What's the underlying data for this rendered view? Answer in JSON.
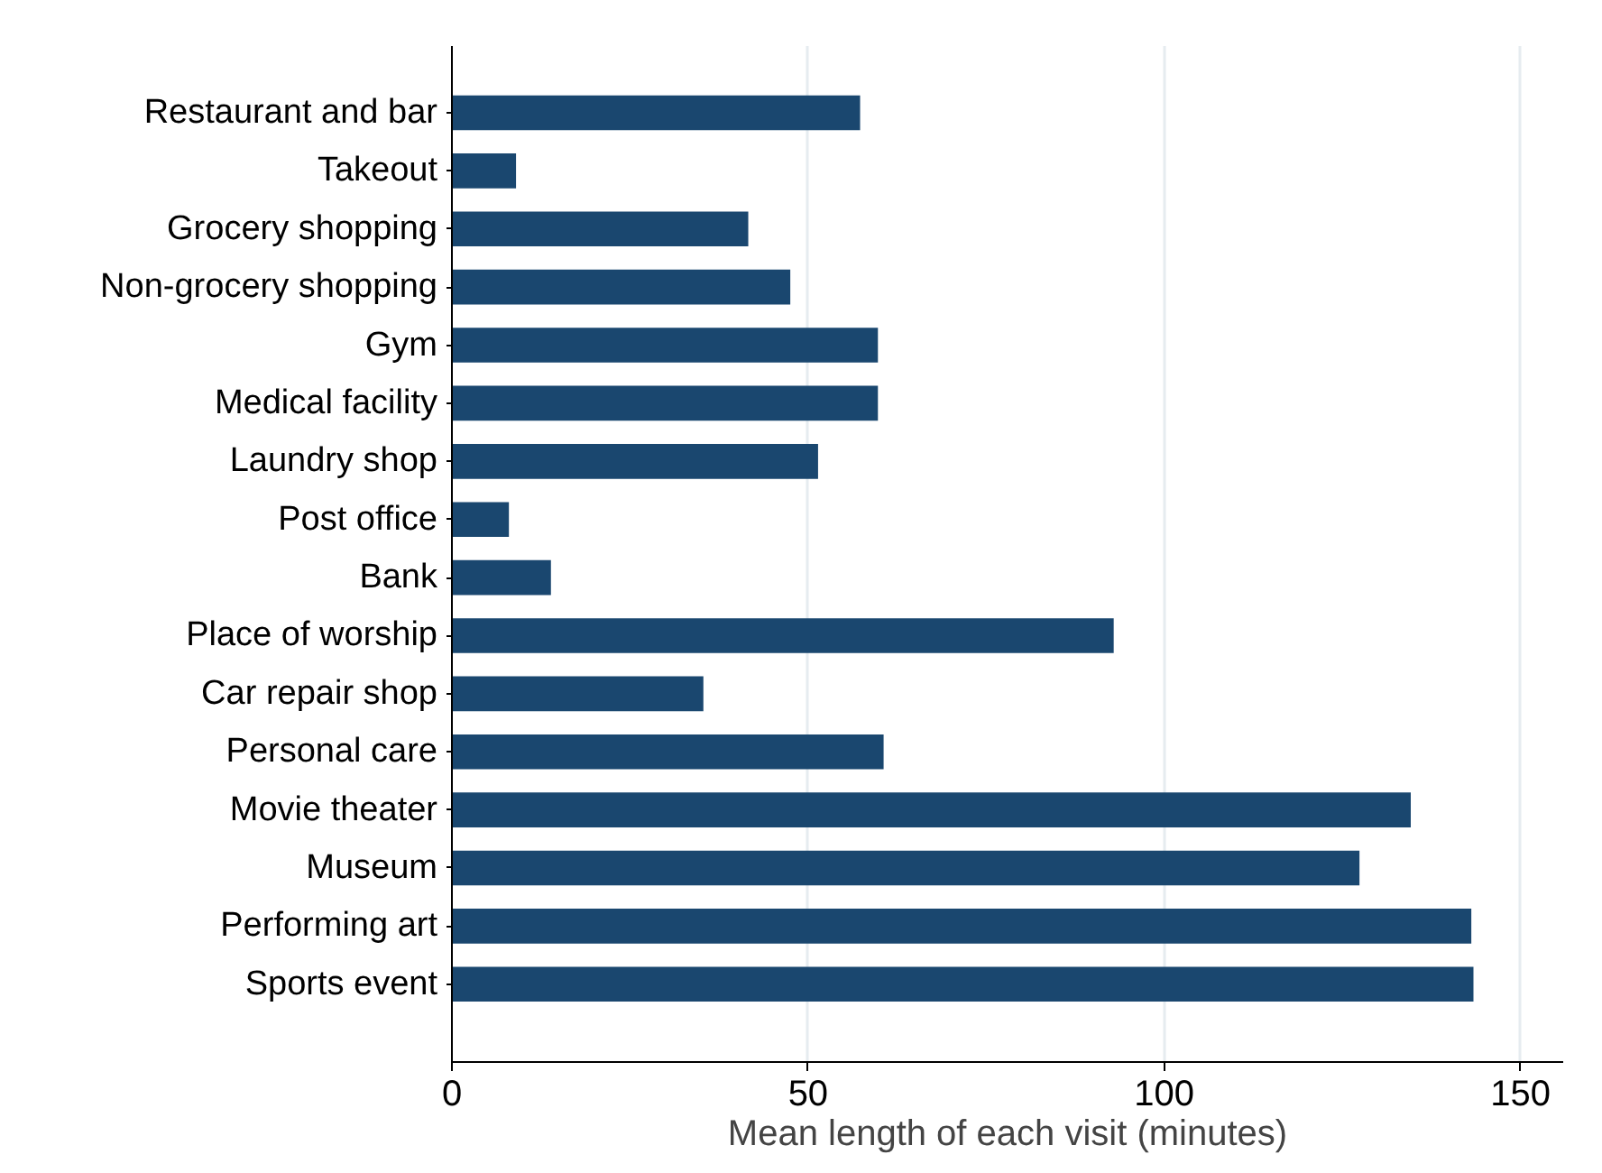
{
  "chart_data": {
    "type": "bar",
    "orientation": "horizontal",
    "xlabel": "Mean length of each visit (minutes)",
    "categories": [
      "Restaurant and bar",
      "Takeout",
      "Grocery shopping",
      "Non-grocery shopping",
      "Gym",
      "Medical facility",
      "Laundry shop",
      "Post office",
      "Bank",
      "Place of worship",
      "Car repair shop",
      "Personal care",
      "Movie theater",
      "Museum",
      "Performing art",
      "Sports event"
    ],
    "values": [
      57.3,
      9.0,
      41.6,
      47.5,
      59.8,
      59.8,
      51.4,
      8.0,
      13.9,
      92.9,
      35.3,
      60.6,
      134.6,
      127.4,
      143.1,
      143.4
    ],
    "color": "#1a476f",
    "xlim": [
      0,
      156
    ],
    "xticks": [
      0,
      50,
      100,
      150
    ],
    "grid": "x"
  }
}
